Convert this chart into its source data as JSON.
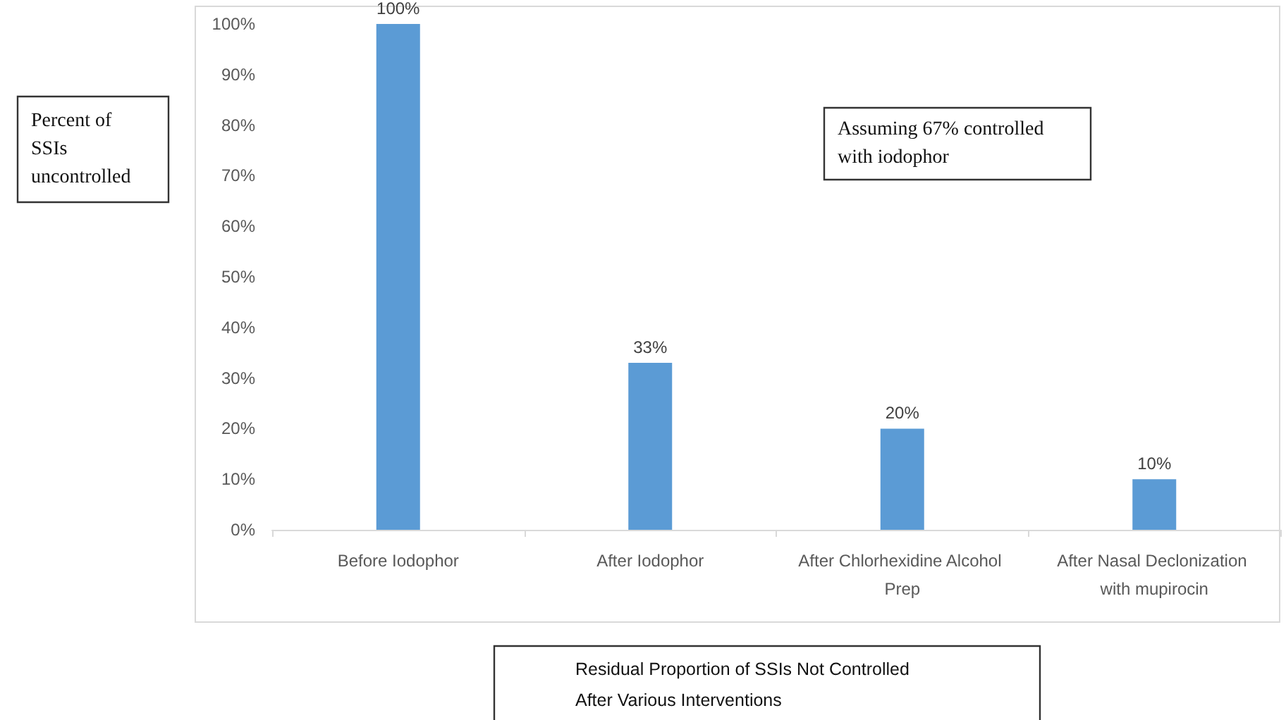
{
  "chart_data": {
    "type": "bar",
    "xlabel": "Residual Proportion of SSIs Not Controlled After Various Interventions",
    "ylabel": "Percent of SSIs uncontrolled",
    "annotations": [
      "Assuming 67% controlled with iodophor"
    ],
    "categories": [
      "Before Iodophor",
      "After Iodophor",
      "After Chlorhexidine Alcohol Prep",
      "After Nasal Declonization with mupirocin"
    ],
    "values": [
      100,
      33,
      20,
      10
    ],
    "value_labels": [
      "100%",
      "33%",
      "20%",
      "10%"
    ],
    "color": "#5b9bd5",
    "ylim": [
      0,
      100
    ],
    "yticks": [
      {
        "value": 0,
        "label": "0%"
      },
      {
        "value": 10,
        "label": "10%"
      },
      {
        "value": 20,
        "label": "20%"
      },
      {
        "value": 30,
        "label": "30%"
      },
      {
        "value": 40,
        "label": "40%"
      },
      {
        "value": 50,
        "label": "50%"
      },
      {
        "value": 60,
        "label": "60%"
      },
      {
        "value": 70,
        "label": "70%"
      },
      {
        "value": 80,
        "label": "80%"
      },
      {
        "value": 90,
        "label": "90%"
      },
      {
        "value": 100,
        "label": "100%"
      }
    ],
    "grid": false
  }
}
